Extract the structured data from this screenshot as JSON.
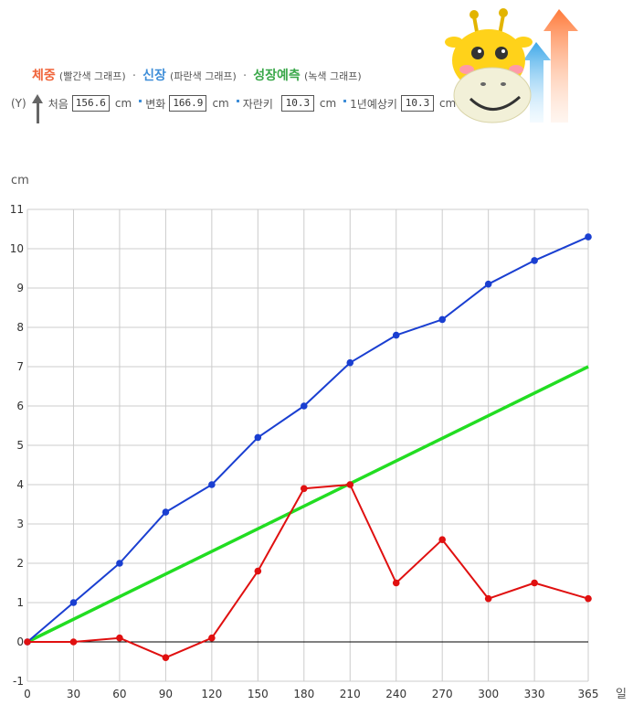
{
  "legend": {
    "weight": "체중",
    "weight_note": "(빨간색 그래프)",
    "height": "신장",
    "height_note": "(파란색 그래프)",
    "growth": "성장예측",
    "growth_note": "(녹색 그래프)",
    "sep": "·"
  },
  "info": {
    "y_label": "(Y)",
    "first_label": "처음",
    "first_value": "156.6",
    "change_label": "변화",
    "change_value": "166.9",
    "grown_label": "자란키",
    "grown_value": "10.3",
    "predict_label": "1년예상키",
    "predict_value": "10.3",
    "unit": "cm"
  },
  "colors": {
    "height": "#1a3fd1",
    "weight": "#e01010",
    "growth": "#22dd22",
    "grid": "#cccccc",
    "zero_line": "#000000"
  },
  "chart_data": {
    "type": "line",
    "ylabel": "cm",
    "xlabel": "일",
    "x": [
      0,
      30,
      60,
      90,
      120,
      150,
      180,
      210,
      240,
      270,
      300,
      330,
      365
    ],
    "x_ticks": [
      "0",
      "30",
      "60",
      "90",
      "120",
      "150",
      "180",
      "210",
      "240",
      "270",
      "300",
      "330",
      "365"
    ],
    "ylim": [
      -1,
      11
    ],
    "y_ticks": [
      -1,
      0,
      1,
      2,
      3,
      4,
      5,
      6,
      7,
      8,
      9,
      10,
      11
    ],
    "grid": true,
    "series": [
      {
        "name": "신장",
        "color": "#1a3fd1",
        "markers": true,
        "values": [
          0,
          1,
          2,
          3.3,
          4,
          5.2,
          6,
          7.1,
          7.8,
          8.2,
          9.1,
          9.7,
          10.3
        ]
      },
      {
        "name": "체중",
        "color": "#e01010",
        "markers": true,
        "values": [
          0,
          0,
          0.1,
          -0.4,
          0.1,
          1.8,
          3.9,
          4,
          1.5,
          2.6,
          1.1,
          1.5,
          1.1
        ]
      },
      {
        "name": "성장예측",
        "color": "#22dd22",
        "markers": false,
        "x": [
          0,
          365
        ],
        "values": [
          0,
          7
        ]
      }
    ]
  }
}
